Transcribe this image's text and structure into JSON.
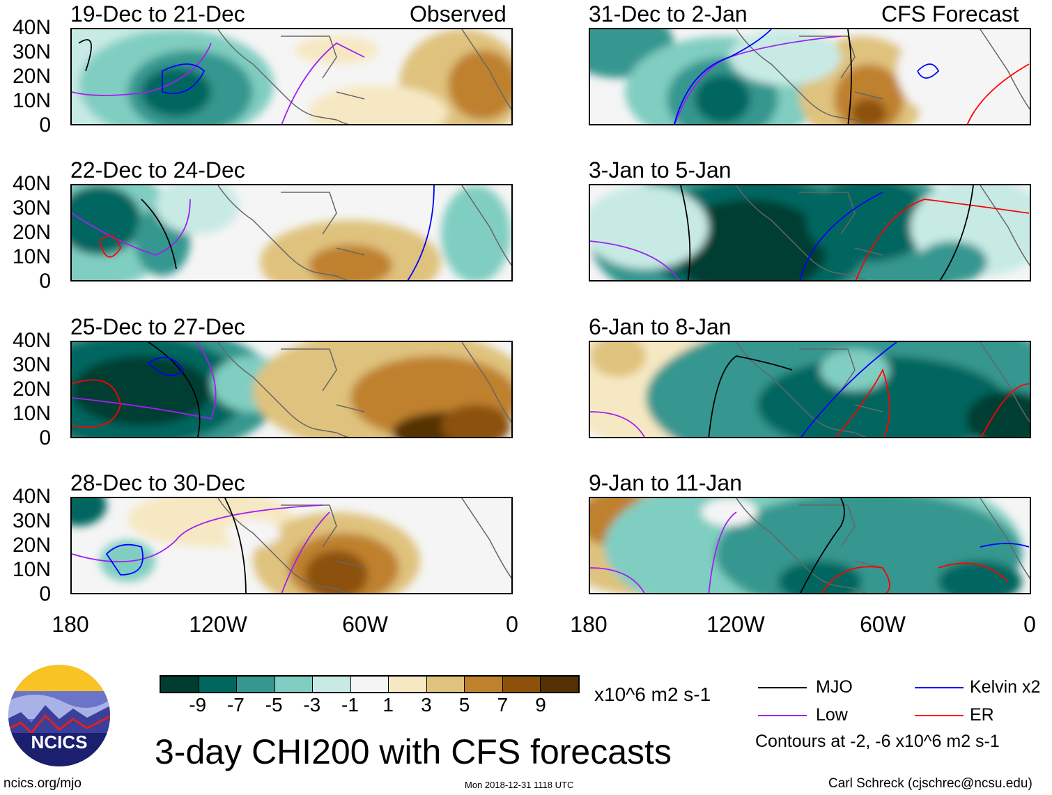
{
  "header": {
    "observed_label": "Observed",
    "forecast_label": "CFS Forecast"
  },
  "panels": [
    {
      "title": "19-Dec to 21-Dec",
      "column": "Observed"
    },
    {
      "title": "22-Dec to 24-Dec",
      "column": "Observed"
    },
    {
      "title": "25-Dec to 27-Dec",
      "column": "Observed"
    },
    {
      "title": "28-Dec to 30-Dec",
      "column": "Observed"
    },
    {
      "title": "31-Dec to 2-Jan",
      "column": "CFS Forecast"
    },
    {
      "title": "3-Jan to 5-Jan",
      "column": "CFS Forecast"
    },
    {
      "title": "6-Jan to 8-Jan",
      "column": "CFS Forecast"
    },
    {
      "title": "9-Jan to 11-Jan",
      "column": "CFS Forecast"
    }
  ],
  "lat_labels": [
    "40N",
    "30N",
    "20N",
    "10N",
    "0"
  ],
  "lon_labels": [
    "180",
    "120W",
    "60W",
    "0"
  ],
  "colorbar": {
    "colors": [
      "#003c30",
      "#01665e",
      "#35978f",
      "#80cdc1",
      "#c7eae5",
      "#f5f5f5",
      "#f6e8c3",
      "#dfc27d",
      "#bf812d",
      "#8c510a",
      "#543005"
    ],
    "labels": [
      "-9",
      "-7",
      "-5",
      "-3",
      "-1",
      "1",
      "3",
      "5",
      "7",
      "9"
    ],
    "units": "x10^6 m2 s-1"
  },
  "legend": {
    "items": [
      {
        "label": "MJO",
        "color": "#000000"
      },
      {
        "label": "Kelvin x2",
        "color": "#0000ff"
      },
      {
        "label": "Low",
        "color": "#a020f0"
      },
      {
        "label": "ER",
        "color": "#ff0000"
      }
    ],
    "contour_note": "Contours at -2, -6 x10^6 m2 s-1"
  },
  "title": "3-day CHI200 with CFS forecasts",
  "logo_text": "NCICS",
  "footer": {
    "url": "ncics.org/mjo",
    "timestamp": "Mon 2018-12-31 1118 UTC",
    "credit": "Carl Schreck (cjschrec@ncsu.edu)"
  }
}
